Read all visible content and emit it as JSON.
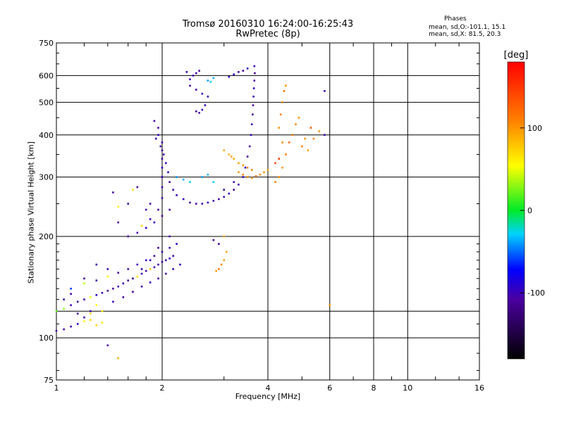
{
  "header": {
    "title": "Tromsø 20160310 16:24:00-16:25:43",
    "subtitle": "RwPretec (8p)",
    "stats_title": "Phases",
    "stats_o": "mean, sd,O:-101.1, 15.1",
    "stats_x": "mean, sd,X:  81.5, 20.3"
  },
  "colorbar": {
    "label": "[deg]",
    "ticks": [
      {
        "value": 100,
        "label": "100"
      },
      {
        "value": 0,
        "label": "0"
      },
      {
        "value": -100,
        "label": "-100"
      }
    ],
    "range": [
      -180,
      180
    ]
  },
  "chart_data": {
    "type": "scatter",
    "xlabel": "Frequency [MHz]",
    "ylabel": "Stationary phase Virtual Height [km]",
    "x_scale": "log",
    "y_scale": "log",
    "xlim": [
      1,
      16
    ],
    "ylim": [
      75,
      750
    ],
    "x_ticks": [
      {
        "v": 1,
        "l": "1"
      },
      {
        "v": 2,
        "l": "2"
      },
      {
        "v": 4,
        "l": "4"
      },
      {
        "v": 6,
        "l": "6"
      },
      {
        "v": 8,
        "l": "8"
      },
      {
        "v": 10,
        "l": "10"
      },
      {
        "v": 16,
        "l": "16"
      }
    ],
    "y_ticks": [
      {
        "v": 75,
        "l": "75"
      },
      {
        "v": 100,
        "l": "100"
      },
      {
        "v": 200,
        "l": "200"
      },
      {
        "v": 300,
        "l": "300"
      },
      {
        "v": 400,
        "l": "400"
      },
      {
        "v": 500,
        "l": "500"
      },
      {
        "v": 600,
        "l": "600"
      },
      {
        "v": 750,
        "l": "750"
      }
    ],
    "x_grid": [
      1,
      2,
      4,
      6,
      8,
      10,
      16
    ],
    "y_grid": [
      100,
      120,
      200,
      300,
      400,
      500,
      600
    ],
    "color_field": "phase (deg)",
    "points": [
      [
        1.0,
        105,
        -110
      ],
      [
        1.05,
        106,
        -105
      ],
      [
        1.1,
        108,
        -100
      ],
      [
        1.15,
        110,
        -95
      ],
      [
        1.2,
        112,
        60
      ],
      [
        1.25,
        113,
        70
      ],
      [
        1.3,
        109,
        75
      ],
      [
        1.35,
        111,
        65
      ],
      [
        1.0,
        120,
        20
      ],
      [
        1.05,
        122,
        30
      ],
      [
        1.1,
        125,
        -100
      ],
      [
        1.15,
        128,
        -110
      ],
      [
        1.2,
        130,
        -105
      ],
      [
        1.25,
        132,
        50
      ],
      [
        1.3,
        134,
        -95
      ],
      [
        1.35,
        136,
        -100
      ],
      [
        1.4,
        138,
        -110
      ],
      [
        1.45,
        140,
        -105
      ],
      [
        1.5,
        142,
        -100
      ],
      [
        1.55,
        145,
        -95
      ],
      [
        1.6,
        148,
        -110
      ],
      [
        1.65,
        150,
        -105
      ],
      [
        1.7,
        152,
        70
      ],
      [
        1.75,
        155,
        -100
      ],
      [
        1.8,
        158,
        -110
      ],
      [
        1.85,
        160,
        80
      ],
      [
        1.9,
        162,
        -100
      ],
      [
        1.95,
        165,
        -105
      ],
      [
        2.0,
        168,
        -110
      ],
      [
        2.05,
        170,
        -100
      ],
      [
        2.1,
        172,
        -95
      ],
      [
        2.15,
        175,
        -105
      ],
      [
        1.1,
        140,
        -60
      ],
      [
        1.2,
        145,
        40
      ],
      [
        1.3,
        148,
        -100
      ],
      [
        1.4,
        152,
        60
      ],
      [
        1.5,
        156,
        -110
      ],
      [
        1.6,
        160,
        -105
      ],
      [
        1.7,
        165,
        -100
      ],
      [
        1.8,
        170,
        -95
      ],
      [
        1.9,
        175,
        -110
      ],
      [
        2.0,
        180,
        -105
      ],
      [
        2.1,
        185,
        -100
      ],
      [
        2.2,
        190,
        -95
      ],
      [
        1.3,
        125,
        55
      ],
      [
        1.35,
        120,
        65
      ],
      [
        1.25,
        118,
        70
      ],
      [
        1.45,
        128,
        -100
      ],
      [
        1.55,
        132,
        -105
      ],
      [
        1.65,
        137,
        -110
      ],
      [
        1.75,
        142,
        -100
      ],
      [
        1.85,
        146,
        -95
      ],
      [
        1.95,
        150,
        -105
      ],
      [
        2.05,
        155,
        -110
      ],
      [
        2.15,
        160,
        -100
      ],
      [
        2.25,
        165,
        -95
      ],
      [
        1.6,
        200,
        -110
      ],
      [
        1.7,
        205,
        -105
      ],
      [
        1.8,
        212,
        -100
      ],
      [
        1.9,
        220,
        -95
      ],
      [
        2.0,
        230,
        -110
      ],
      [
        2.1,
        240,
        -105
      ],
      [
        1.75,
        215,
        75
      ],
      [
        1.85,
        225,
        -100
      ],
      [
        1.95,
        240,
        -105
      ],
      [
        2.0,
        260,
        -110
      ],
      [
        2.0,
        280,
        -105
      ],
      [
        2.0,
        300,
        -100
      ],
      [
        2.0,
        320,
        -95
      ],
      [
        2.0,
        340,
        -110
      ],
      [
        2.0,
        360,
        -105
      ],
      [
        2.0,
        380,
        -100
      ],
      [
        1.95,
        400,
        -95
      ],
      [
        1.95,
        420,
        -110
      ],
      [
        1.9,
        440,
        -105
      ],
      [
        1.92,
        390,
        -100
      ],
      [
        1.98,
        370,
        -110
      ],
      [
        2.02,
        350,
        -105
      ],
      [
        2.05,
        330,
        -100
      ],
      [
        2.08,
        310,
        -95
      ],
      [
        2.1,
        290,
        -110
      ],
      [
        2.15,
        275,
        -105
      ],
      [
        2.2,
        265,
        -100
      ],
      [
        2.3,
        258,
        -95
      ],
      [
        2.4,
        252,
        -110
      ],
      [
        2.5,
        250,
        -105
      ],
      [
        2.6,
        250,
        -100
      ],
      [
        2.7,
        252,
        -95
      ],
      [
        2.8,
        255,
        -110
      ],
      [
        2.9,
        258,
        -105
      ],
      [
        3.0,
        262,
        -100
      ],
      [
        3.1,
        268,
        -95
      ],
      [
        3.2,
        275,
        -110
      ],
      [
        3.3,
        285,
        -105
      ],
      [
        3.4,
        300,
        -100
      ],
      [
        3.45,
        320,
        -95
      ],
      [
        3.5,
        345,
        -110
      ],
      [
        3.55,
        370,
        -105
      ],
      [
        3.58,
        400,
        -100
      ],
      [
        3.6,
        430,
        -95
      ],
      [
        3.62,
        460,
        -110
      ],
      [
        3.63,
        490,
        -105
      ],
      [
        3.64,
        520,
        -100
      ],
      [
        3.65,
        550,
        -95
      ],
      [
        3.66,
        580,
        -110
      ],
      [
        3.67,
        610,
        -105
      ],
      [
        3.66,
        640,
        -100
      ],
      [
        3.5,
        630,
        -95
      ],
      [
        3.4,
        620,
        -110
      ],
      [
        3.3,
        615,
        -105
      ],
      [
        3.2,
        605,
        -100
      ],
      [
        3.1,
        595,
        -95
      ],
      [
        2.4,
        560,
        -110
      ],
      [
        2.5,
        545,
        -105
      ],
      [
        2.6,
        530,
        -100
      ],
      [
        2.7,
        520,
        -95
      ],
      [
        2.5,
        470,
        -110
      ],
      [
        2.55,
        465,
        -105
      ],
      [
        2.6,
        475,
        -100
      ],
      [
        2.65,
        490,
        -95
      ],
      [
        2.7,
        580,
        -40
      ],
      [
        2.75,
        575,
        -30
      ],
      [
        2.8,
        590,
        -35
      ],
      [
        2.45,
        600,
        -100
      ],
      [
        2.5,
        610,
        -105
      ],
      [
        2.55,
        620,
        -110
      ],
      [
        2.35,
        615,
        -100
      ],
      [
        2.4,
        585,
        -105
      ],
      [
        2.2,
        300,
        -40
      ],
      [
        2.3,
        295,
        -35
      ],
      [
        2.4,
        290,
        -30
      ],
      [
        2.6,
        300,
        -40
      ],
      [
        2.7,
        305,
        -35
      ],
      [
        2.8,
        290,
        -30
      ],
      [
        3.0,
        275,
        -100
      ],
      [
        3.2,
        290,
        -105
      ],
      [
        3.3,
        310,
        100
      ],
      [
        3.4,
        305,
        110
      ],
      [
        3.5,
        300,
        105
      ],
      [
        3.6,
        298,
        100
      ],
      [
        3.7,
        302,
        110
      ],
      [
        3.8,
        305,
        105
      ],
      [
        3.9,
        310,
        100
      ],
      [
        4.0,
        315,
        95
      ],
      [
        3.2,
        340,
        90
      ],
      [
        3.3,
        330,
        95
      ],
      [
        3.4,
        325,
        100
      ],
      [
        3.5,
        320,
        105
      ],
      [
        3.6,
        315,
        110
      ],
      [
        3.1,
        350,
        85
      ],
      [
        3.0,
        360,
        90
      ],
      [
        3.15,
        345,
        95
      ],
      [
        4.2,
        290,
        110
      ],
      [
        4.3,
        300,
        105
      ],
      [
        4.4,
        320,
        100
      ],
      [
        4.5,
        350,
        110
      ],
      [
        4.4,
        380,
        105
      ],
      [
        4.3,
        420,
        100
      ],
      [
        4.35,
        460,
        110
      ],
      [
        4.4,
        500,
        105
      ],
      [
        4.45,
        540,
        115
      ],
      [
        4.5,
        560,
        100
      ],
      [
        4.2,
        330,
        140
      ],
      [
        4.3,
        340,
        150
      ],
      [
        4.6,
        380,
        120
      ],
      [
        4.7,
        400,
        110
      ],
      [
        4.8,
        430,
        105
      ],
      [
        4.9,
        450,
        100
      ],
      [
        5.0,
        370,
        110
      ],
      [
        5.2,
        360,
        95
      ],
      [
        5.4,
        390,
        105
      ],
      [
        5.6,
        410,
        100
      ],
      [
        5.8,
        400,
        -100
      ],
      [
        5.8,
        540,
        -100
      ],
      [
        5.1,
        390,
        100
      ],
      [
        5.3,
        420,
        130
      ],
      [
        2.8,
        195,
        -110
      ],
      [
        2.9,
        190,
        -105
      ],
      [
        3.0,
        200,
        90
      ],
      [
        3.05,
        180,
        95
      ],
      [
        3.0,
        170,
        100
      ],
      [
        2.95,
        165,
        105
      ],
      [
        2.9,
        160,
        110
      ],
      [
        2.85,
        158,
        100
      ],
      [
        1.5,
        245,
        60
      ],
      [
        1.6,
        250,
        -100
      ],
      [
        1.45,
        270,
        -105
      ],
      [
        1.65,
        275,
        70
      ],
      [
        1.7,
        280,
        -110
      ],
      [
        1.8,
        240,
        -100
      ],
      [
        1.85,
        250,
        -105
      ],
      [
        1.5,
        220,
        -110
      ],
      [
        1.4,
        160,
        -100
      ],
      [
        1.3,
        165,
        -105
      ],
      [
        1.2,
        150,
        -110
      ],
      [
        1.1,
        135,
        -100
      ],
      [
        1.05,
        130,
        -95
      ],
      [
        1.15,
        118,
        -110
      ],
      [
        1.2,
        115,
        -105
      ],
      [
        1.25,
        120,
        -100
      ],
      [
        1.4,
        95,
        -110
      ],
      [
        1.5,
        87,
        90
      ],
      [
        6.0,
        125,
        100
      ],
      [
        1.65,
        150,
        -105
      ],
      [
        1.75,
        160,
        -100
      ],
      [
        1.85,
        170,
        -95
      ],
      [
        1.95,
        185,
        -110
      ],
      [
        2.1,
        200,
        -105
      ]
    ]
  }
}
